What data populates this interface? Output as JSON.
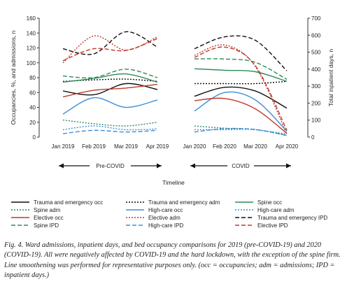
{
  "chart_data": {
    "type": "line",
    "ylabel_left": "Occupancies, %, and admissions, n",
    "ylabel_right": "Total inpatient days, n",
    "xlabel": "Timeline",
    "ylim_left": [
      0,
      160
    ],
    "ylim_right": [
      0,
      700
    ],
    "yticks_left": [
      "0",
      "20",
      "40",
      "60",
      "80",
      "100",
      "120",
      "140",
      "160"
    ],
    "yticks_right": [
      "0",
      "100",
      "200",
      "300",
      "400",
      "500",
      "600",
      "700"
    ],
    "grid": false,
    "legend_position": "bottom",
    "periods": [
      {
        "label": "Pre-COVID",
        "x": [
          "Jan 2019",
          "Feb 2019",
          "Mar 2019",
          "Apr 2019"
        ],
        "series": [
          {
            "name": "Trauma and emergency occ",
            "color": "#111111",
            "dash": "solid",
            "axis": "left",
            "values": [
              62,
              57,
              72,
              64
            ]
          },
          {
            "name": "Trauma and emergency adm",
            "color": "#111111",
            "dash": "dotted",
            "axis": "left",
            "values": [
              75,
              77,
              78,
              75
            ]
          },
          {
            "name": "Spine occ",
            "color": "#2e8b57",
            "dash": "solid",
            "axis": "left",
            "values": [
              74,
              79,
              85,
              74
            ]
          },
          {
            "name": "Spine adm",
            "color": "#2e8b57",
            "dash": "dotted",
            "axis": "left",
            "values": [
              23,
              18,
              15,
              20
            ]
          },
          {
            "name": "High-care occ",
            "color": "#3b8fd6",
            "dash": "solid",
            "axis": "left",
            "values": [
              31,
              53,
              40,
              50
            ]
          },
          {
            "name": "High-care adm",
            "color": "#3b8fd6",
            "dash": "dotted",
            "axis": "left",
            "values": [
              10,
              15,
              10,
              11
            ]
          },
          {
            "name": "Elective occ",
            "color": "#c0392b",
            "dash": "solid",
            "axis": "left",
            "values": [
              54,
              63,
              66,
              71
            ]
          },
          {
            "name": "Elective adm",
            "color": "#c0392b",
            "dash": "dotted",
            "axis": "left",
            "values": [
              100,
              136,
              117,
              135
            ]
          },
          {
            "name": "Trauma and emergency IPD",
            "color": "#111111",
            "dash": "dashed",
            "axis": "right",
            "values": [
              520,
              490,
              620,
              530
            ]
          },
          {
            "name": "Spine IPD",
            "color": "#2e8b57",
            "dash": "dashed",
            "axis": "right",
            "values": [
              360,
              350,
              400,
              350
            ]
          },
          {
            "name": "High-care IPD",
            "color": "#3b8fd6",
            "dash": "dashed",
            "axis": "right",
            "values": [
              20,
              40,
              30,
              40
            ]
          },
          {
            "name": "Elective IPD",
            "color": "#c0392b",
            "dash": "dashed",
            "axis": "right",
            "values": [
              450,
              520,
              510,
              580
            ]
          }
        ]
      },
      {
        "label": "COVID",
        "x": [
          "Jan 2020",
          "Feb 2020",
          "Mar 2020",
          "Apr 2020"
        ],
        "series": [
          {
            "name": "Trauma and emergency occ",
            "color": "#111111",
            "dash": "solid",
            "axis": "left",
            "values": [
              55,
              67,
              62,
              39
            ]
          },
          {
            "name": "Trauma and emergency adm",
            "color": "#111111",
            "dash": "dotted",
            "axis": "left",
            "values": [
              72,
              72,
              72,
              75
            ]
          },
          {
            "name": "Spine occ",
            "color": "#2e8b57",
            "dash": "solid",
            "axis": "left",
            "values": [
              92,
              90,
              88,
              75
            ]
          },
          {
            "name": "Spine adm",
            "color": "#2e8b57",
            "dash": "dotted",
            "axis": "left",
            "values": [
              15,
              12,
              10,
              4
            ]
          },
          {
            "name": "High-care occ",
            "color": "#3b8fd6",
            "dash": "solid",
            "axis": "left",
            "values": [
              35,
              60,
              50,
              8
            ]
          },
          {
            "name": "High-care adm",
            "color": "#3b8fd6",
            "dash": "dotted",
            "axis": "left",
            "values": [
              10,
              10,
              10,
              2
            ]
          },
          {
            "name": "Elective occ",
            "color": "#c0392b",
            "dash": "solid",
            "axis": "left",
            "values": [
              49,
              52,
              38,
              5
            ]
          },
          {
            "name": "Elective adm",
            "color": "#c0392b",
            "dash": "dotted",
            "axis": "left",
            "values": [
              110,
              124,
              95,
              4
            ]
          },
          {
            "name": "Trauma and emergency IPD",
            "color": "#111111",
            "dash": "dashed",
            "axis": "right",
            "values": [
              520,
              590,
              570,
              390
            ]
          },
          {
            "name": "Spine IPD",
            "color": "#2e8b57",
            "dash": "dashed",
            "axis": "right",
            "values": [
              460,
              460,
              440,
              340
            ]
          },
          {
            "name": "High-care IPD",
            "color": "#3b8fd6",
            "dash": "dashed",
            "axis": "right",
            "values": [
              30,
              50,
              45,
              10
            ]
          },
          {
            "name": "Elective IPD",
            "color": "#c0392b",
            "dash": "dashed",
            "axis": "right",
            "values": [
              470,
              530,
              420,
              40
            ]
          }
        ]
      }
    ],
    "legend": [
      {
        "name": "Trauma and emergency occ",
        "color": "#111111",
        "dash": "solid"
      },
      {
        "name": "Trauma and emergency adm",
        "color": "#111111",
        "dash": "dotted"
      },
      {
        "name": "Spine occ",
        "color": "#2e8b57",
        "dash": "solid"
      },
      {
        "name": "Spine adm",
        "color": "#2e8b57",
        "dash": "dotted"
      },
      {
        "name": "High-care occ",
        "color": "#3b8fd6",
        "dash": "solid"
      },
      {
        "name": "High-care adm",
        "color": "#3b8fd6",
        "dash": "dotted"
      },
      {
        "name": "Elective occ",
        "color": "#c0392b",
        "dash": "solid"
      },
      {
        "name": "Elective adm",
        "color": "#c0392b",
        "dash": "dotted"
      },
      {
        "name": "Trauma and emergency IPD",
        "color": "#111111",
        "dash": "dashed"
      },
      {
        "name": "Spine IPD",
        "color": "#2e8b57",
        "dash": "dashed"
      },
      {
        "name": "High-care IPD",
        "color": "#3b8fd6",
        "dash": "dashed"
      },
      {
        "name": "Elective IPD",
        "color": "#c0392b",
        "dash": "dashed"
      }
    ]
  },
  "caption": "Fig. 4. Ward admissions, inpatient days, and bed occupancy comparisons for 2019 (pre-COVID-19) and 2020 (COVID-19). All were negatively affected by COVID-19 and the hard lockdown, with the exception of the spine firm. Line smoothening was performed for representative purposes only. (occ = occupancies; adm = admissions; IPD = inpatient days.)"
}
